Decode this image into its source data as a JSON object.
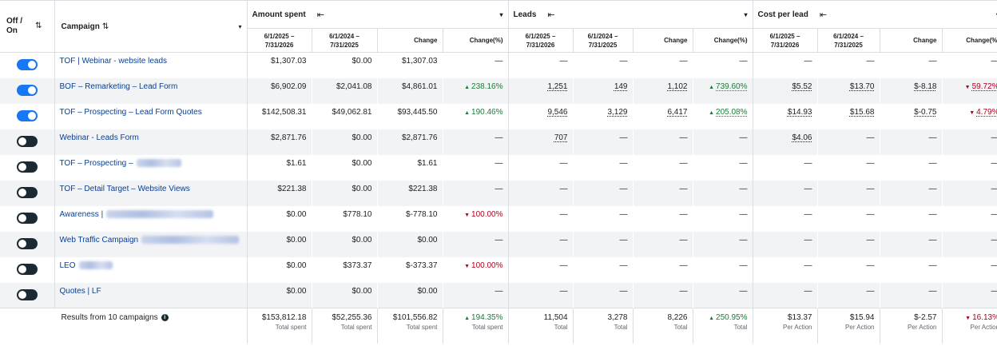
{
  "headers": {
    "toggle": "Off / On",
    "sort_icon": "⇅",
    "campaign": "Campaign",
    "caret": "▾",
    "collapse_icon": "⇤",
    "groups": [
      "Amount spent",
      "Leads",
      "Cost per lead"
    ],
    "subcols": [
      [
        "6/1/2025 –",
        "7/31/2026"
      ],
      [
        "6/1/2024 –",
        "7/31/2025"
      ],
      [
        "Change"
      ],
      [
        "Change(%)"
      ]
    ]
  },
  "rows": [
    {
      "on": true,
      "campaign": "TOF | Webinar - website leads",
      "blurred": false,
      "cells": [
        "$1,307.03",
        "$0.00",
        "$1,307.03",
        "—",
        "—",
        "—",
        "—",
        "—",
        "—",
        "—",
        "—",
        "—"
      ]
    },
    {
      "on": true,
      "campaign": "BOF – Remarketing – Lead Form",
      "blurred": false,
      "cells": [
        "$6,902.09",
        "$2,041.08",
        "$4,861.01",
        "238.16%",
        "1,251",
        "149",
        "1,102",
        "739.60%",
        "$5.52",
        "$13.70",
        "$-8.18",
        "59.72%"
      ]
    },
    {
      "on": true,
      "campaign": "TOF – Prospecting – Lead Form Quotes",
      "blurred": false,
      "cells": [
        "$142,508.31",
        "$49,062.81",
        "$93,445.50",
        "190.46%",
        "9,546",
        "3,129",
        "6,417",
        "205.08%",
        "$14.93",
        "$15.68",
        "$-0.75",
        "4.79%"
      ]
    },
    {
      "on": false,
      "campaign": "Webinar - Leads Form",
      "blurred": false,
      "cells": [
        "$2,871.76",
        "$0.00",
        "$2,871.76",
        "—",
        "707",
        "—",
        "—",
        "—",
        "$4.06",
        "—",
        "—",
        "—"
      ]
    },
    {
      "on": false,
      "campaign": "TOF – Prospecting –",
      "blurred": true,
      "cells": [
        "$1.61",
        "$0.00",
        "$1.61",
        "—",
        "—",
        "—",
        "—",
        "—",
        "—",
        "—",
        "—",
        "—"
      ]
    },
    {
      "on": false,
      "campaign": "TOF – Detail Target – Website Views",
      "blurred": false,
      "cells": [
        "$221.38",
        "$0.00",
        "$221.38",
        "—",
        "—",
        "—",
        "—",
        "—",
        "—",
        "—",
        "—",
        "—"
      ]
    },
    {
      "on": false,
      "campaign": "Awareness |",
      "blurred": true,
      "cells": [
        "$0.00",
        "$778.10",
        "$-778.10",
        "100.00%",
        "—",
        "—",
        "—",
        "—",
        "—",
        "—",
        "—",
        "—"
      ]
    },
    {
      "on": false,
      "campaign": "Web Traffic Campaign",
      "blurred": true,
      "cells": [
        "$0.00",
        "$0.00",
        "$0.00",
        "—",
        "—",
        "—",
        "—",
        "—",
        "—",
        "—",
        "—",
        "—"
      ]
    },
    {
      "on": false,
      "campaign": "LEO",
      "blurred": true,
      "cells": [
        "$0.00",
        "$373.37",
        "$-373.37",
        "100.00%",
        "—",
        "—",
        "—",
        "—",
        "—",
        "—",
        "—",
        "—"
      ]
    },
    {
      "on": false,
      "campaign": "Quotes | LF",
      "blurred": false,
      "cells": [
        "$0.00",
        "$0.00",
        "$0.00",
        "—",
        "—",
        "—",
        "—",
        "—",
        "—",
        "—",
        "—",
        "—"
      ]
    }
  ],
  "trends": {
    "1": {
      "3": "up",
      "7": "up",
      "11": "down"
    },
    "2": {
      "3": "up",
      "7": "up",
      "11": "down"
    },
    "6": {
      "3": "down"
    },
    "8": {
      "3": "down"
    }
  },
  "underlined": {
    "1": [
      4,
      5,
      6,
      7,
      8,
      9,
      10,
      11
    ],
    "2": [
      4,
      5,
      6,
      7,
      8,
      9,
      10,
      11
    ],
    "3": [
      4,
      8
    ]
  },
  "footer": {
    "label": "Results from 10 campaigns",
    "info_icon": "i",
    "values": [
      "$153,812.18",
      "$52,255.36",
      "$101,556.82",
      "194.35%",
      "11,504",
      "3,278",
      "8,226",
      "250.95%",
      "$13.37",
      "$15.94",
      "$-2.57",
      "16.13%"
    ],
    "labels": [
      "Total spent",
      "Total spent",
      "Total spent",
      "Total spent",
      "Total",
      "Total",
      "Total",
      "Total",
      "Per Action",
      "Per Action",
      "Per Action",
      "Per Action"
    ],
    "trends": {
      "3": "up",
      "7": "up",
      "11": "down"
    }
  },
  "colors": {
    "toggle_on": "#1877f2",
    "toggle_off": "#1c2b33",
    "link": "#0a3f93",
    "positive": "#1d7a3a",
    "negative": "#b00020"
  }
}
